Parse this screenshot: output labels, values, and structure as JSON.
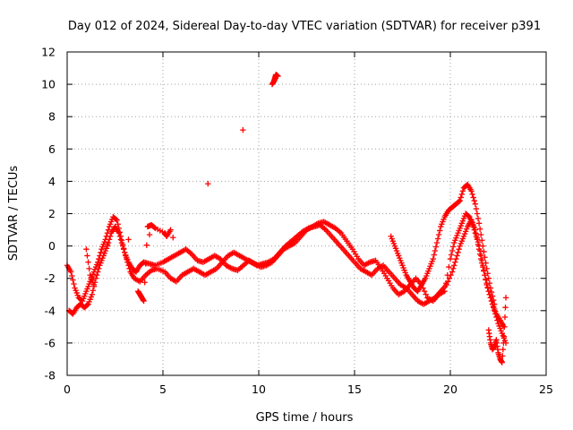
{
  "chart_data": {
    "type": "scatter",
    "title": "Day 012 of 2024, Sidereal Day-to-day VTEC variation (SDTVAR) for receiver p391",
    "xlabel": "GPS time / hours",
    "ylabel": "SDTVAR / TECUs",
    "xlim": [
      0,
      25
    ],
    "ylim": [
      -8,
      12
    ],
    "xticks": [
      0,
      5,
      10,
      15,
      20,
      25
    ],
    "yticks": [
      -8,
      -6,
      -4,
      -2,
      0,
      2,
      4,
      6,
      8,
      10,
      12
    ],
    "grid": true,
    "marker": "+",
    "marker_color": "#ff0000",
    "series": [
      {
        "name": "main-a",
        "x": [
          0.0,
          0.2,
          0.4,
          0.6,
          0.8,
          1.0,
          1.2,
          1.4,
          1.6,
          1.8,
          2.0,
          2.2,
          2.4,
          2.6,
          2.8,
          3.0,
          3.2,
          3.4,
          3.6,
          3.8,
          4.0,
          4.3,
          4.6,
          5.0,
          5.3,
          5.6,
          5.9,
          6.2,
          6.5,
          6.8,
          7.1,
          7.4,
          7.7,
          8.0,
          8.3,
          8.6,
          8.9,
          9.2,
          9.5,
          9.8,
          10.1,
          10.4,
          10.7,
          11.0,
          11.3,
          11.6,
          11.9,
          12.2,
          12.5,
          12.8,
          13.1,
          13.4,
          13.7,
          14.0,
          14.3,
          14.6,
          14.9,
          15.2,
          15.5,
          15.8,
          16.1,
          16.4,
          16.7,
          17.0,
          17.3,
          17.6,
          17.9,
          18.2,
          18.5,
          18.8,
          19.1,
          19.4,
          19.7,
          20.0,
          20.2,
          20.4,
          20.6,
          20.8,
          21.0,
          21.2,
          21.4,
          21.6,
          21.8,
          22.0,
          22.2,
          22.4,
          22.6,
          22.8
        ],
        "y": [
          -1.2,
          -1.6,
          -2.6,
          -3.2,
          -3.4,
          -2.8,
          -2.2,
          -1.6,
          -1.0,
          -0.2,
          0.4,
          1.2,
          1.8,
          1.6,
          0.6,
          -0.4,
          -1.0,
          -1.4,
          -1.6,
          -1.2,
          -1.0,
          -1.1,
          -1.2,
          -1.0,
          -0.8,
          -0.6,
          -0.4,
          -0.2,
          -0.5,
          -0.9,
          -1.0,
          -0.8,
          -0.6,
          -0.8,
          -1.2,
          -1.4,
          -1.5,
          -1.2,
          -0.9,
          -1.1,
          -1.3,
          -1.2,
          -1.0,
          -0.6,
          -0.2,
          0.0,
          0.2,
          0.6,
          1.0,
          1.2,
          1.4,
          1.5,
          1.3,
          1.1,
          0.8,
          0.3,
          -0.2,
          -0.8,
          -1.2,
          -1.0,
          -0.9,
          -1.4,
          -2.0,
          -2.6,
          -3.0,
          -2.8,
          -2.4,
          -2.0,
          -2.4,
          -3.2,
          -3.4,
          -3.0,
          -2.8,
          -0.8,
          0.2,
          0.8,
          1.4,
          2.0,
          1.8,
          1.2,
          0.4,
          -0.8,
          -1.8,
          -2.8,
          -3.6,
          -4.2,
          -4.6,
          -5.0
        ]
      },
      {
        "name": "main-b",
        "x": [
          0.1,
          0.3,
          0.5,
          0.7,
          0.9,
          1.1,
          1.3,
          1.5,
          1.7,
          1.9,
          2.1,
          2.3,
          2.5,
          2.7,
          2.9,
          3.1,
          3.3,
          3.5,
          3.8,
          4.1,
          4.4,
          4.7,
          5.1,
          5.4,
          5.7,
          6.0,
          6.3,
          6.6,
          6.9,
          7.2,
          7.5,
          7.8,
          8.1,
          8.4,
          8.7,
          9.0,
          9.3,
          9.6,
          9.9,
          10.2,
          10.5,
          10.8,
          11.1,
          11.4,
          11.7,
          12.0,
          12.3,
          12.6,
          12.9,
          13.2,
          13.5,
          13.8,
          14.1,
          14.4,
          14.7,
          15.0,
          15.3,
          15.6,
          15.9,
          16.2,
          16.5,
          16.8,
          17.1,
          17.4,
          17.7,
          18.0,
          18.3,
          18.6,
          18.9,
          19.2,
          19.5,
          19.8,
          20.1,
          20.3,
          20.5,
          20.7,
          20.9,
          21.1,
          21.3,
          21.5,
          21.7,
          21.9,
          22.1,
          22.3,
          22.5,
          22.7,
          22.9
        ],
        "y": [
          -4.0,
          -4.2,
          -3.8,
          -3.6,
          -3.8,
          -3.6,
          -3.0,
          -2.0,
          -1.2,
          -0.6,
          0.0,
          0.8,
          1.2,
          0.8,
          0.0,
          -0.8,
          -1.6,
          -2.0,
          -2.2,
          -1.8,
          -1.5,
          -1.4,
          -1.6,
          -2.0,
          -2.2,
          -1.8,
          -1.6,
          -1.4,
          -1.6,
          -1.8,
          -1.6,
          -1.4,
          -1.0,
          -0.6,
          -0.4,
          -0.6,
          -0.8,
          -1.0,
          -1.2,
          -1.1,
          -1.0,
          -0.8,
          -0.4,
          0.0,
          0.3,
          0.6,
          0.9,
          1.1,
          1.2,
          1.3,
          1.0,
          0.6,
          0.2,
          -0.2,
          -0.6,
          -1.0,
          -1.4,
          -1.6,
          -1.8,
          -1.4,
          -1.2,
          -1.6,
          -2.0,
          -2.4,
          -2.6,
          -3.0,
          -3.4,
          -3.6,
          -3.4,
          -3.2,
          -2.8,
          -2.4,
          -1.6,
          -0.8,
          0.0,
          0.6,
          1.2,
          1.6,
          1.0,
          0.0,
          -1.2,
          -2.4,
          -3.2,
          -4.0,
          -4.8,
          -5.4,
          -6.0
        ]
      },
      {
        "name": "upper",
        "x": [
          16.9,
          17.1,
          17.3,
          17.5,
          17.7,
          17.9,
          18.1,
          18.3,
          18.5,
          18.7,
          18.9,
          19.1,
          19.3,
          19.5,
          19.7,
          19.9,
          20.1,
          20.3,
          20.5,
          20.7,
          20.9,
          21.1,
          21.3,
          21.5,
          21.7,
          21.9,
          22.1,
          22.3
        ],
        "y": [
          0.6,
          0.0,
          -0.6,
          -1.2,
          -1.8,
          -2.2,
          -2.6,
          -2.8,
          -2.4,
          -2.0,
          -1.4,
          -0.8,
          0.2,
          1.2,
          1.8,
          2.2,
          2.4,
          2.6,
          2.8,
          3.6,
          3.8,
          3.4,
          2.6,
          1.4,
          0.0,
          -1.4,
          -2.6,
          -3.6
        ]
      },
      {
        "name": "tail",
        "x": [
          22.0,
          22.1,
          22.2,
          22.3,
          22.4,
          22.5,
          22.6,
          22.7,
          22.8,
          22.9
        ],
        "y": [
          -5.2,
          -6.0,
          -6.4,
          -6.2,
          -5.8,
          -6.6,
          -7.0,
          -7.2,
          -5.6,
          -3.2
        ]
      },
      {
        "name": "isolated",
        "x": [
          10.7,
          10.8,
          10.85,
          10.9,
          11.0,
          3.7,
          3.8,
          3.9,
          4.0,
          4.2,
          4.4,
          4.6,
          5.1,
          5.2,
          5.4,
          1.0,
          1.2,
          1.4
        ],
        "y": [
          10.0,
          10.2,
          10.4,
          10.6,
          10.5,
          -2.8,
          -3.0,
          -3.2,
          -3.4,
          1.2,
          1.3,
          1.1,
          0.8,
          0.6,
          1.0,
          -0.2,
          -1.8,
          -2.4
        ]
      }
    ]
  }
}
